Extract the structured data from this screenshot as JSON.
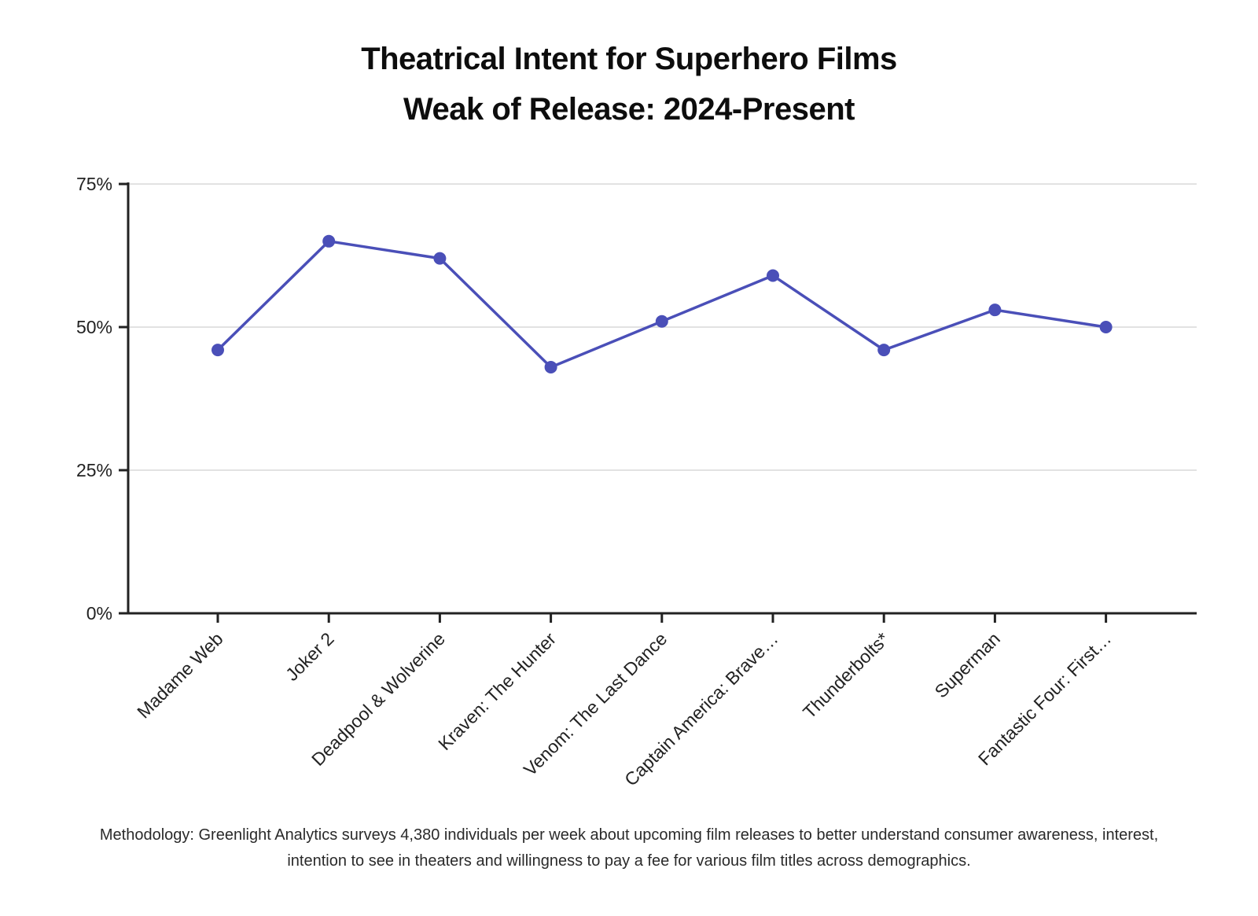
{
  "title": "Theatrical Intent for Superhero Films",
  "subtitle": "Weak of Release: 2024-Present",
  "methodology": "Methodology: Greenlight Analytics surveys 4,380 individuals per week about upcoming film releases to better understand consumer awareness, interest, intention to see in theaters and willingness to pay a fee for various film titles across demographics.",
  "colors": {
    "line": "#4a4fb8",
    "axis": "#222222",
    "grid": "#d9d9d9"
  },
  "chart_data": {
    "type": "line",
    "title": "Theatrical Intent for Superhero Films",
    "subtitle": "Weak of Release: 2024-Present",
    "categories": [
      "Madame Web",
      "Joker 2",
      "Deadpool & Wolverine",
      "Kraven: The Hunter",
      "Venom: The Last Dance",
      "Captain America: Brave…",
      "Thunderbolts*",
      "Superman",
      "Fantastic Four: First…"
    ],
    "series": [
      {
        "values": [
          46,
          65,
          62,
          43,
          51,
          59,
          46,
          53,
          50
        ]
      }
    ],
    "ylim": [
      0,
      75
    ],
    "yticks": [
      0,
      25,
      50,
      75
    ],
    "ytick_labels": [
      "0%",
      "25%",
      "50%",
      "75%"
    ],
    "grid": true,
    "legend": "none"
  }
}
